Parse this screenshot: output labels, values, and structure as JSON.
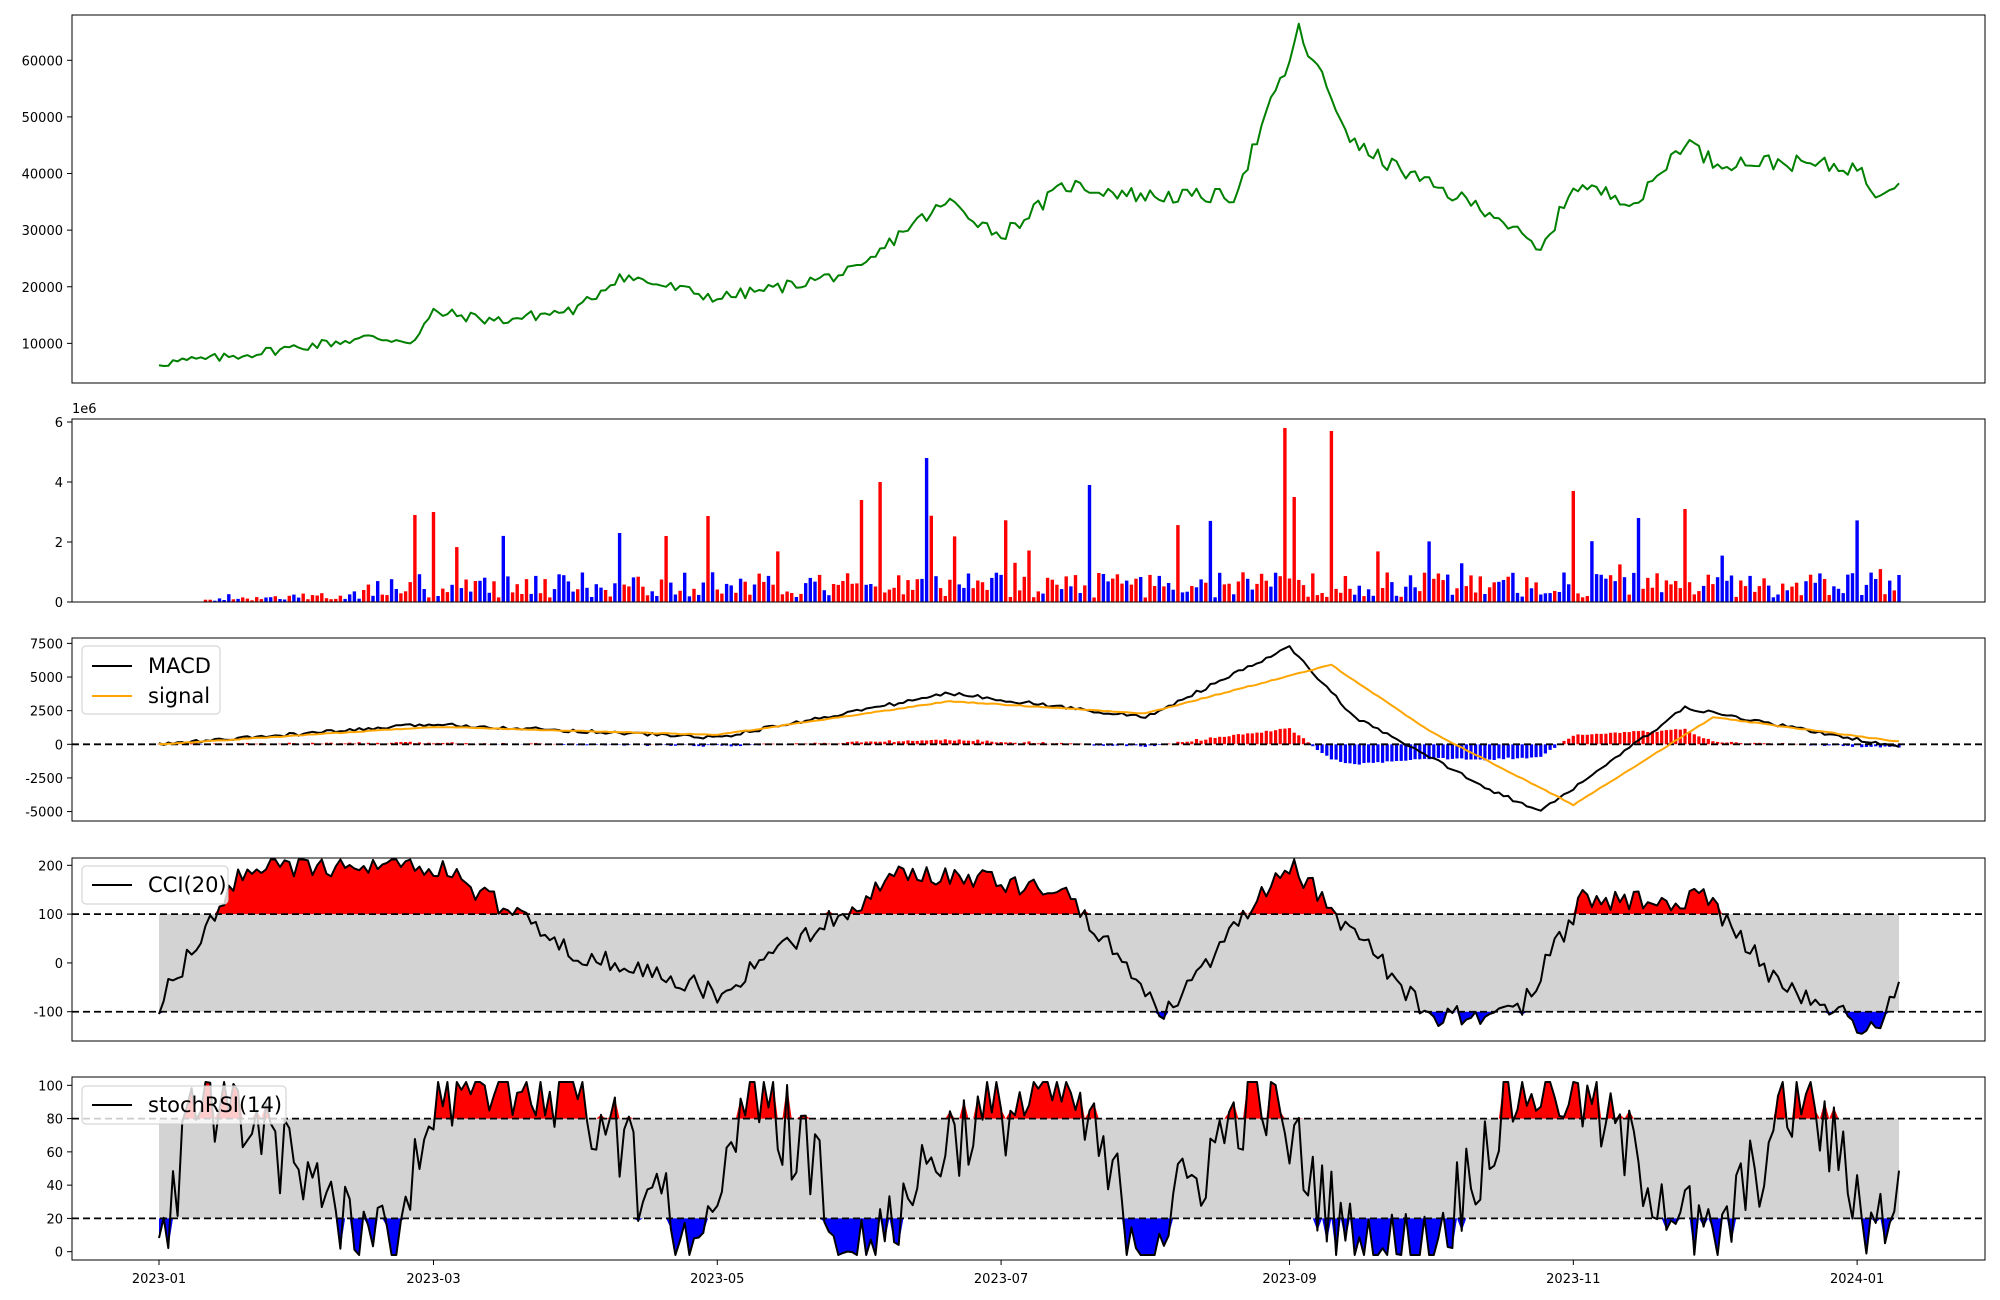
{
  "colors": {
    "price": "#008000",
    "up": "#ff0000",
    "down": "#0000ff",
    "macd": "#000000",
    "signal": "#ffa500",
    "band": "#d3d3d3"
  },
  "chart_data": [
    {
      "panel": "price",
      "type": "line",
      "ylim": [
        3000,
        68000
      ],
      "yticks": [
        10000,
        20000,
        30000,
        40000,
        50000,
        60000
      ],
      "series": [
        {
          "x": [
            "2023-01-01",
            "2023-01-15",
            "2023-02-01",
            "2023-02-15",
            "2023-02-25",
            "2023-03-01",
            "2023-03-15",
            "2023-04-01",
            "2023-04-10",
            "2023-05-01",
            "2023-05-15",
            "2023-06-01",
            "2023-06-10",
            "2023-06-20",
            "2023-07-01",
            "2023-07-15",
            "2023-08-01",
            "2023-08-20",
            "2023-09-01",
            "2023-09-03",
            "2023-09-15",
            "2023-10-01",
            "2023-10-15",
            "2023-10-25",
            "2023-11-01",
            "2023-11-15",
            "2023-11-25",
            "2023-12-01",
            "2023-12-15",
            "2024-01-01",
            "2024-01-05",
            "2024-01-10"
          ],
          "values": [
            6500,
            7500,
            9500,
            11000,
            10500,
            15500,
            14000,
            16000,
            22000,
            18000,
            20000,
            23000,
            30000,
            35000,
            29000,
            38000,
            36000,
            36000,
            60000,
            65000,
            45000,
            38000,
            33000,
            26000,
            38000,
            35000,
            46000,
            42000,
            42000,
            41000,
            36500,
            39000
          ]
        }
      ]
    },
    {
      "panel": "volume",
      "type": "bar",
      "ylim": [
        0,
        6100000
      ],
      "yticks": [
        0,
        2,
        4,
        6
      ],
      "offset_label": "1e6",
      "x": [
        "2023-01-01",
        "2023-02-25",
        "2023-03-01",
        "2023-04-10",
        "2023-04-20",
        "2023-06-01",
        "2023-06-05",
        "2023-06-15",
        "2023-07-20",
        "2023-08-31",
        "2023-09-02",
        "2023-09-10",
        "2023-11-01",
        "2023-11-15",
        "2023-11-25",
        "2024-01-10"
      ],
      "values": [
        0,
        2900000,
        3000000,
        2300000,
        2200000,
        3400000,
        4000000,
        4800000,
        3900000,
        5800000,
        3500000,
        5700000,
        3700000,
        2800000,
        3100000,
        900000
      ]
    },
    {
      "panel": "macd",
      "type": "line",
      "ylim": [
        -5700,
        7900
      ],
      "yticks": [
        -5000,
        -2500,
        0,
        2500,
        5000,
        7500
      ],
      "series": [
        {
          "name": "MACD",
          "x": [
            "2023-01-01",
            "2023-03-01",
            "2023-05-01",
            "2023-06-20",
            "2023-08-01",
            "2023-09-01",
            "2023-09-15",
            "2023-10-15",
            "2023-10-25",
            "2023-11-25",
            "2024-01-10"
          ],
          "values": [
            0,
            1500,
            500,
            3800,
            2000,
            7200,
            2000,
            -3500,
            -5000,
            2700,
            -200
          ]
        },
        {
          "name": "signal",
          "x": [
            "2023-01-01",
            "2023-03-01",
            "2023-05-01",
            "2023-06-20",
            "2023-08-01",
            "2023-09-10",
            "2023-10-01",
            "2023-11-01",
            "2023-12-01",
            "2024-01-10"
          ],
          "values": [
            0,
            1300,
            700,
            3200,
            2300,
            5900,
            1000,
            -4500,
            2000,
            200
          ]
        }
      ]
    },
    {
      "panel": "cci",
      "type": "line",
      "ylim": [
        -160,
        215
      ],
      "yticks": [
        -100,
        0,
        100,
        200
      ],
      "bands": [
        -100,
        100
      ],
      "series": [
        {
          "name": "CCI(20)",
          "x": [
            "2023-01-01",
            "2023-01-20",
            "2023-03-01",
            "2023-04-01",
            "2023-05-01",
            "2023-06-10",
            "2023-07-15",
            "2023-08-05",
            "2023-09-01",
            "2023-10-01",
            "2023-10-20",
            "2023-11-03",
            "2023-11-30",
            "2023-12-15",
            "2024-01-05",
            "2024-01-10"
          ],
          "values": [
            -85,
            200,
            200,
            20,
            -60,
            185,
            150,
            -110,
            205,
            -110,
            -105,
            130,
            130,
            -40,
            -140,
            -55
          ]
        }
      ]
    },
    {
      "panel": "stochrsi",
      "type": "line",
      "ylim": [
        -5,
        105
      ],
      "yticks": [
        0,
        20,
        40,
        60,
        80,
        100
      ],
      "bands": [
        20,
        80
      ],
      "series": [
        {
          "name": "stochRSI(14)",
          "x": [
            "2023-01-01",
            "2023-01-10",
            "2023-02-20",
            "2023-03-01",
            "2023-04-01",
            "2023-04-25",
            "2023-05-10",
            "2023-06-01",
            "2023-06-20",
            "2023-07-15",
            "2023-08-01",
            "2023-08-25",
            "2023-09-15",
            "2023-10-01",
            "2023-10-20",
            "2023-11-01",
            "2023-12-01",
            "2023-12-20",
            "2024-01-05",
            "2024-01-10"
          ],
          "values": [
            7,
            100,
            0,
            98,
            100,
            0,
            100,
            0,
            70,
            100,
            0,
            100,
            0,
            0,
            100,
            100,
            0,
            100,
            12,
            43
          ]
        }
      ]
    }
  ],
  "x_axis": {
    "ticks": [
      "2023-01",
      "2023-03",
      "2023-05",
      "2023-07",
      "2023-09",
      "2023-11",
      "2024-01"
    ]
  }
}
